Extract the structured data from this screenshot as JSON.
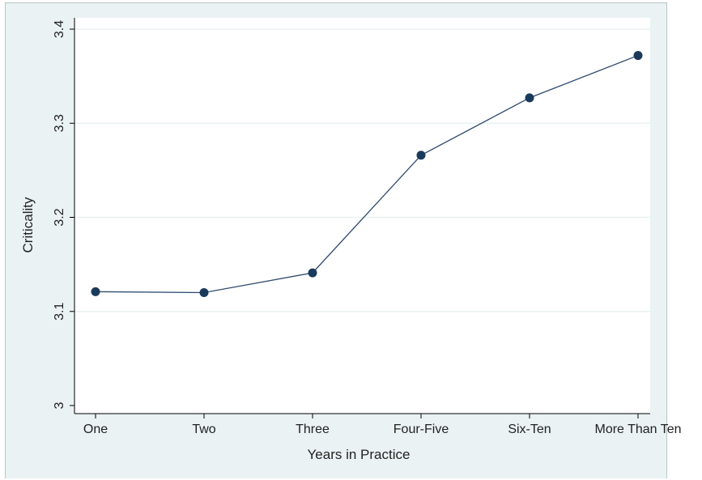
{
  "chart_data": {
    "type": "line",
    "title": "",
    "xlabel": "Years in Practice",
    "ylabel": "Criticality",
    "categories": [
      "One",
      "Two",
      "Three",
      "Four-Five",
      "Six-Ten",
      "More Than Ten"
    ],
    "series": [
      {
        "values": [
          3.121,
          3.12,
          3.141,
          3.266,
          3.327,
          3.372
        ]
      }
    ],
    "ylim": [
      3.0,
      3.4
    ],
    "yticks": [
      "3",
      "3.1",
      "3.2",
      "3.3",
      "3.4"
    ],
    "grid": "horizontal",
    "legend": "none",
    "colors": {
      "line": "#2e4a6e",
      "marker": "#1a3a5c",
      "plot_background": "#ffffff",
      "outer_background": "#eaf2f3",
      "grid": "#eaf2f3",
      "axis": "#000000"
    }
  }
}
